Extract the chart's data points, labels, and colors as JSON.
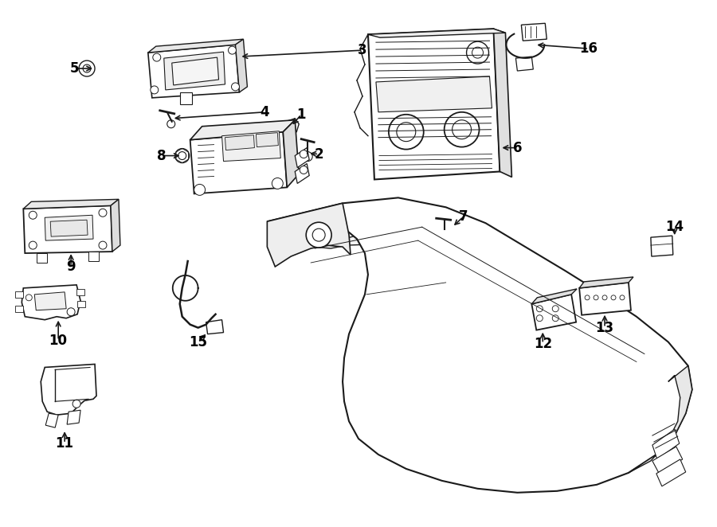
{
  "bg_color": "#ffffff",
  "line_color": "#1a1a1a",
  "label_color": "#000000"
}
